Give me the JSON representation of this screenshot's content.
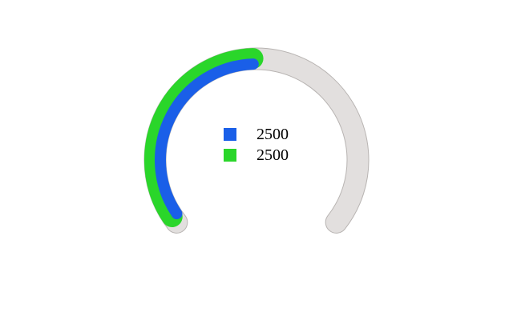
{
  "chart_data": {
    "type": "gauge",
    "min": 0,
    "max": 5000,
    "track_color": "#e2dfde",
    "series": [
      {
        "value": 2500,
        "color": "#2ad62a",
        "label": "2500"
      },
      {
        "value": 2500,
        "color": "#1a5fe8",
        "label": "2500"
      }
    ],
    "legend": {
      "placement": "center",
      "entries": [
        {
          "label": "2500",
          "color": "#1a5fe8"
        },
        {
          "label": "2500",
          "color": "#2ad62a"
        }
      ]
    }
  }
}
